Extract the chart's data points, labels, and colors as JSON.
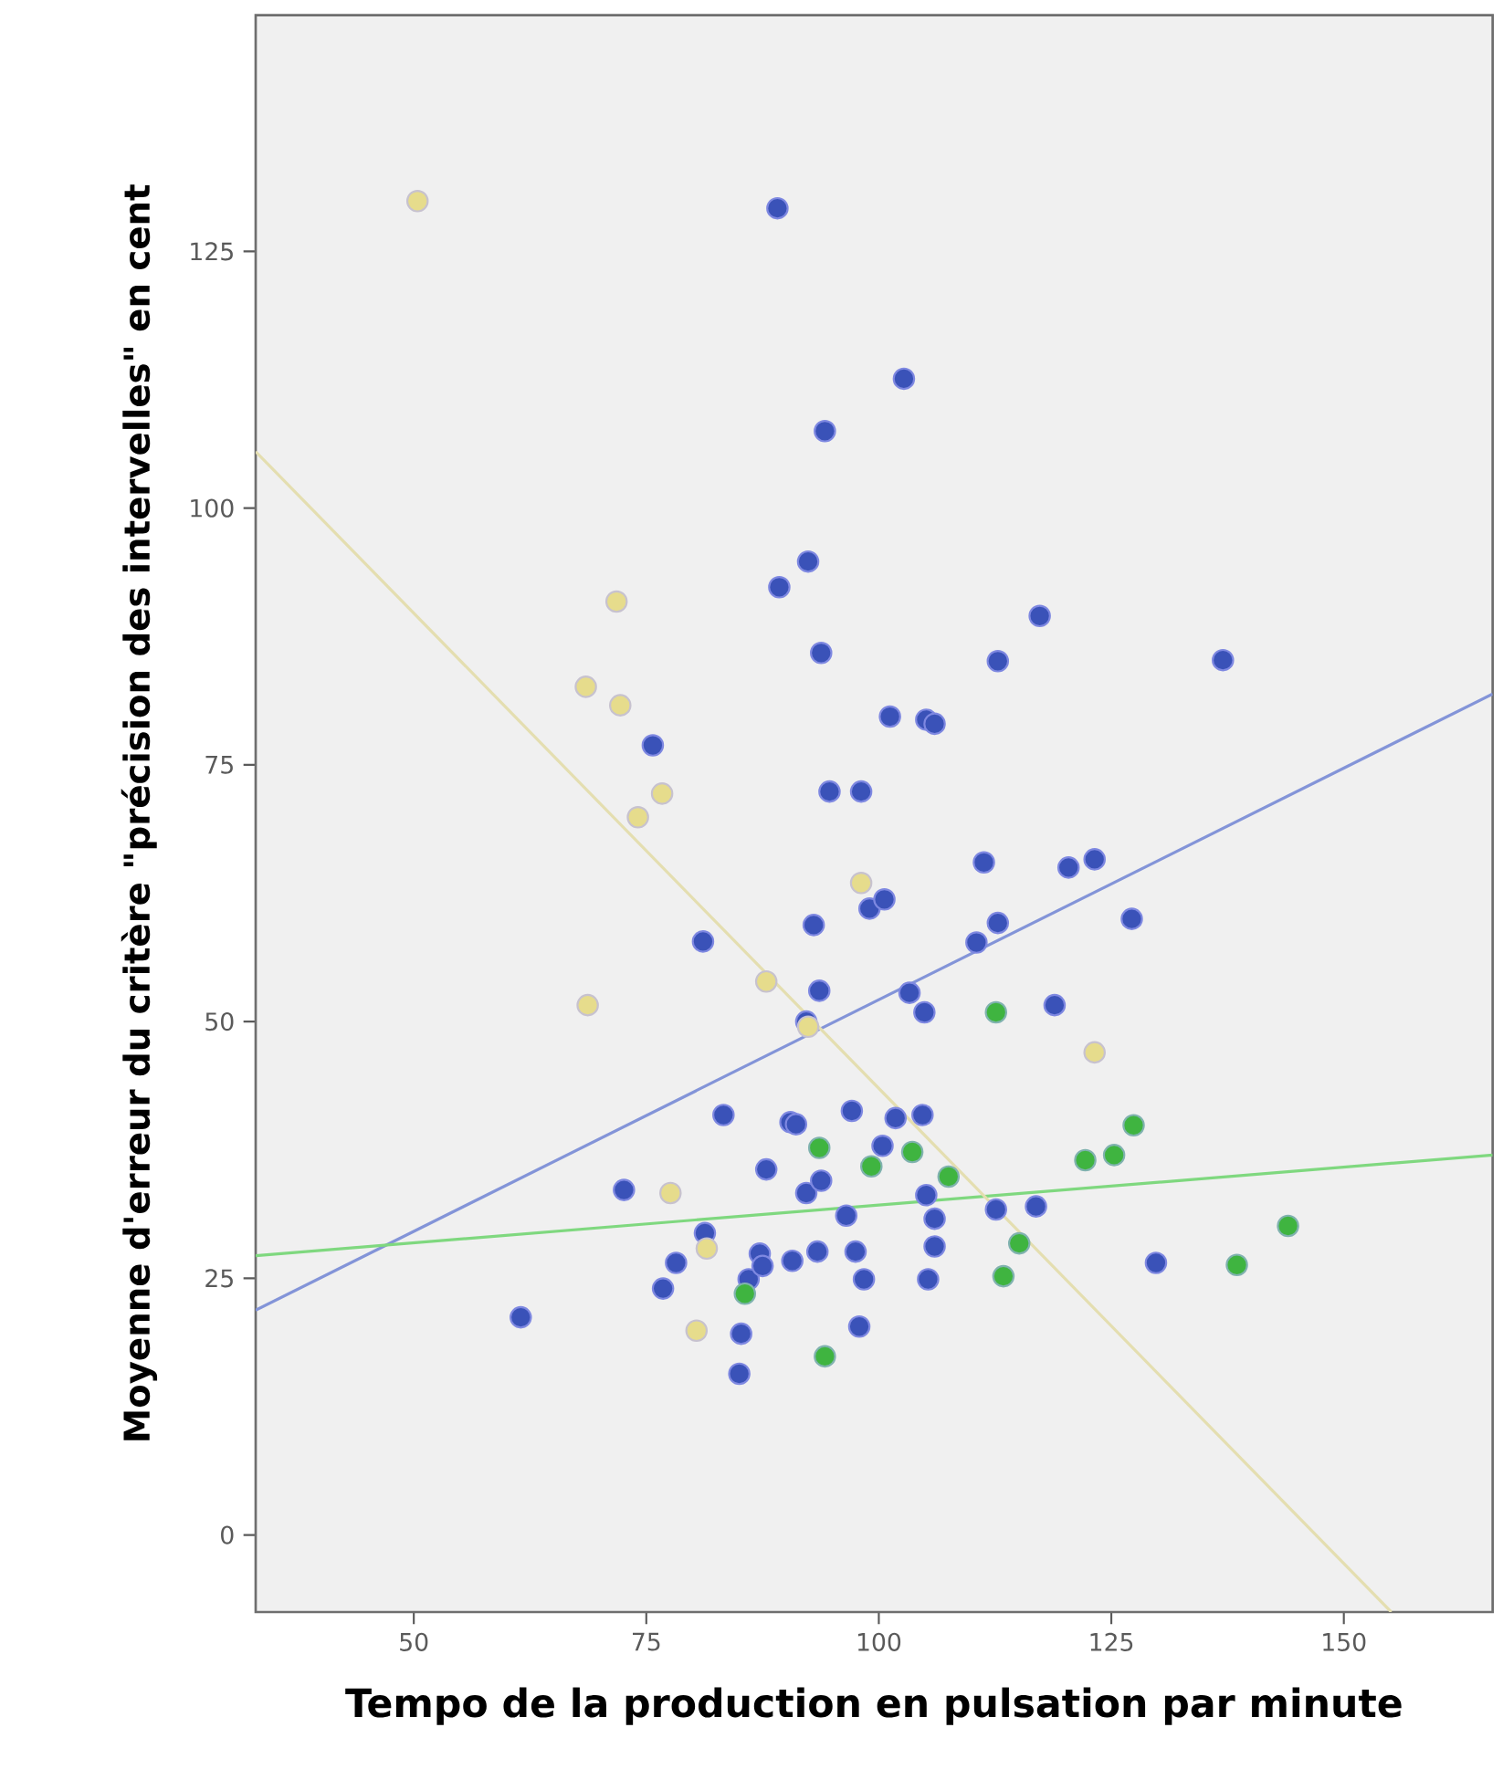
{
  "chart_data": {
    "type": "scatter",
    "xlabel": "Tempo de la production en pulsation par minute",
    "ylabel": "Moyenne d'erreur du critère \"précision des intervelles\" en cent",
    "xlim": [
      33,
      166
    ],
    "ylim": [
      -7.5,
      148
    ],
    "xticks": [
      50,
      75,
      100,
      125,
      150
    ],
    "yticks": [
      0,
      25,
      50,
      75,
      100,
      125
    ],
    "grid": false,
    "marker": "circle",
    "series": [
      {
        "color": "#3a52b8",
        "x": [
          61.5,
          72.6,
          75.7,
          76.8,
          78.2,
          81.1,
          81.3,
          83.3,
          85.0,
          85.2,
          86.0,
          87.2,
          87.5,
          87.9,
          89.1,
          89.3,
          90.5,
          90.7,
          91.1,
          92.2,
          92.2,
          92.4,
          93.0,
          93.4,
          93.6,
          93.8,
          93.8,
          94.2,
          94.7,
          96.5,
          97.1,
          97.5,
          97.9,
          98.1,
          98.4,
          99.0,
          100.6,
          100.4,
          101.2,
          101.8,
          102.7,
          103.3,
          104.7,
          104.9,
          105.1,
          106.0,
          105.1,
          106.0,
          106.0,
          105.3,
          110.5,
          111.3,
          112.6,
          112.8,
          112.8,
          116.9,
          117.3,
          118.9,
          120.4,
          123.2,
          127.2,
          129.8,
          137.0
        ],
        "values": [
          21.2,
          33.6,
          76.9,
          24.0,
          26.5,
          57.8,
          29.4,
          40.9,
          15.7,
          19.6,
          24.9,
          27.4,
          26.2,
          35.6,
          129.2,
          92.3,
          40.2,
          26.7,
          40.0,
          33.3,
          50.0,
          94.8,
          59.4,
          27.6,
          53.0,
          85.9,
          34.5,
          107.5,
          72.4,
          31.1,
          41.3,
          27.6,
          20.3,
          72.4,
          24.9,
          61.0,
          61.9,
          37.9,
          79.7,
          40.6,
          112.6,
          52.8,
          40.9,
          50.9,
          79.4,
          79.0,
          33.1,
          30.8,
          28.1,
          24.9,
          57.7,
          65.5,
          31.7,
          59.6,
          85.1,
          32.0,
          89.5,
          51.6,
          65.0,
          65.8,
          60.0,
          26.5,
          85.2
        ]
      },
      {
        "color": "#3fb440",
        "x": [
          85.6,
          93.6,
          94.2,
          99.2,
          103.6,
          107.5,
          112.6,
          113.4,
          115.1,
          122.2,
          125.3,
          127.4,
          138.5,
          144.0
        ],
        "values": [
          23.5,
          37.7,
          17.4,
          35.9,
          37.3,
          34.9,
          50.9,
          25.2,
          28.4,
          36.5,
          37.0,
          39.9,
          26.3,
          30.1
        ]
      },
      {
        "color": "#e6dc8c",
        "x": [
          50.4,
          68.5,
          68.7,
          71.8,
          72.2,
          74.1,
          76.7,
          77.6,
          80.4,
          81.5,
          87.9,
          92.4,
          98.1,
          123.2
        ],
        "values": [
          129.9,
          82.6,
          51.6,
          90.9,
          80.8,
          69.9,
          72.2,
          33.3,
          19.9,
          27.9,
          53.9,
          49.5,
          63.5,
          47.0
        ]
      },
      {
        "type": "line",
        "color": "#8394d8",
        "marker": "none",
        "x": [
          33,
          166
        ],
        "values": [
          21.9,
          81.9
        ]
      },
      {
        "type": "line",
        "color": "#7fd87f",
        "marker": "none",
        "x": [
          33,
          166
        ],
        "values": [
          27.2,
          37.0
        ]
      },
      {
        "type": "line",
        "color": "#e4deb0",
        "marker": "none",
        "x": [
          33,
          155.1
        ],
        "values": [
          105.5,
          -7.5
        ]
      }
    ]
  }
}
